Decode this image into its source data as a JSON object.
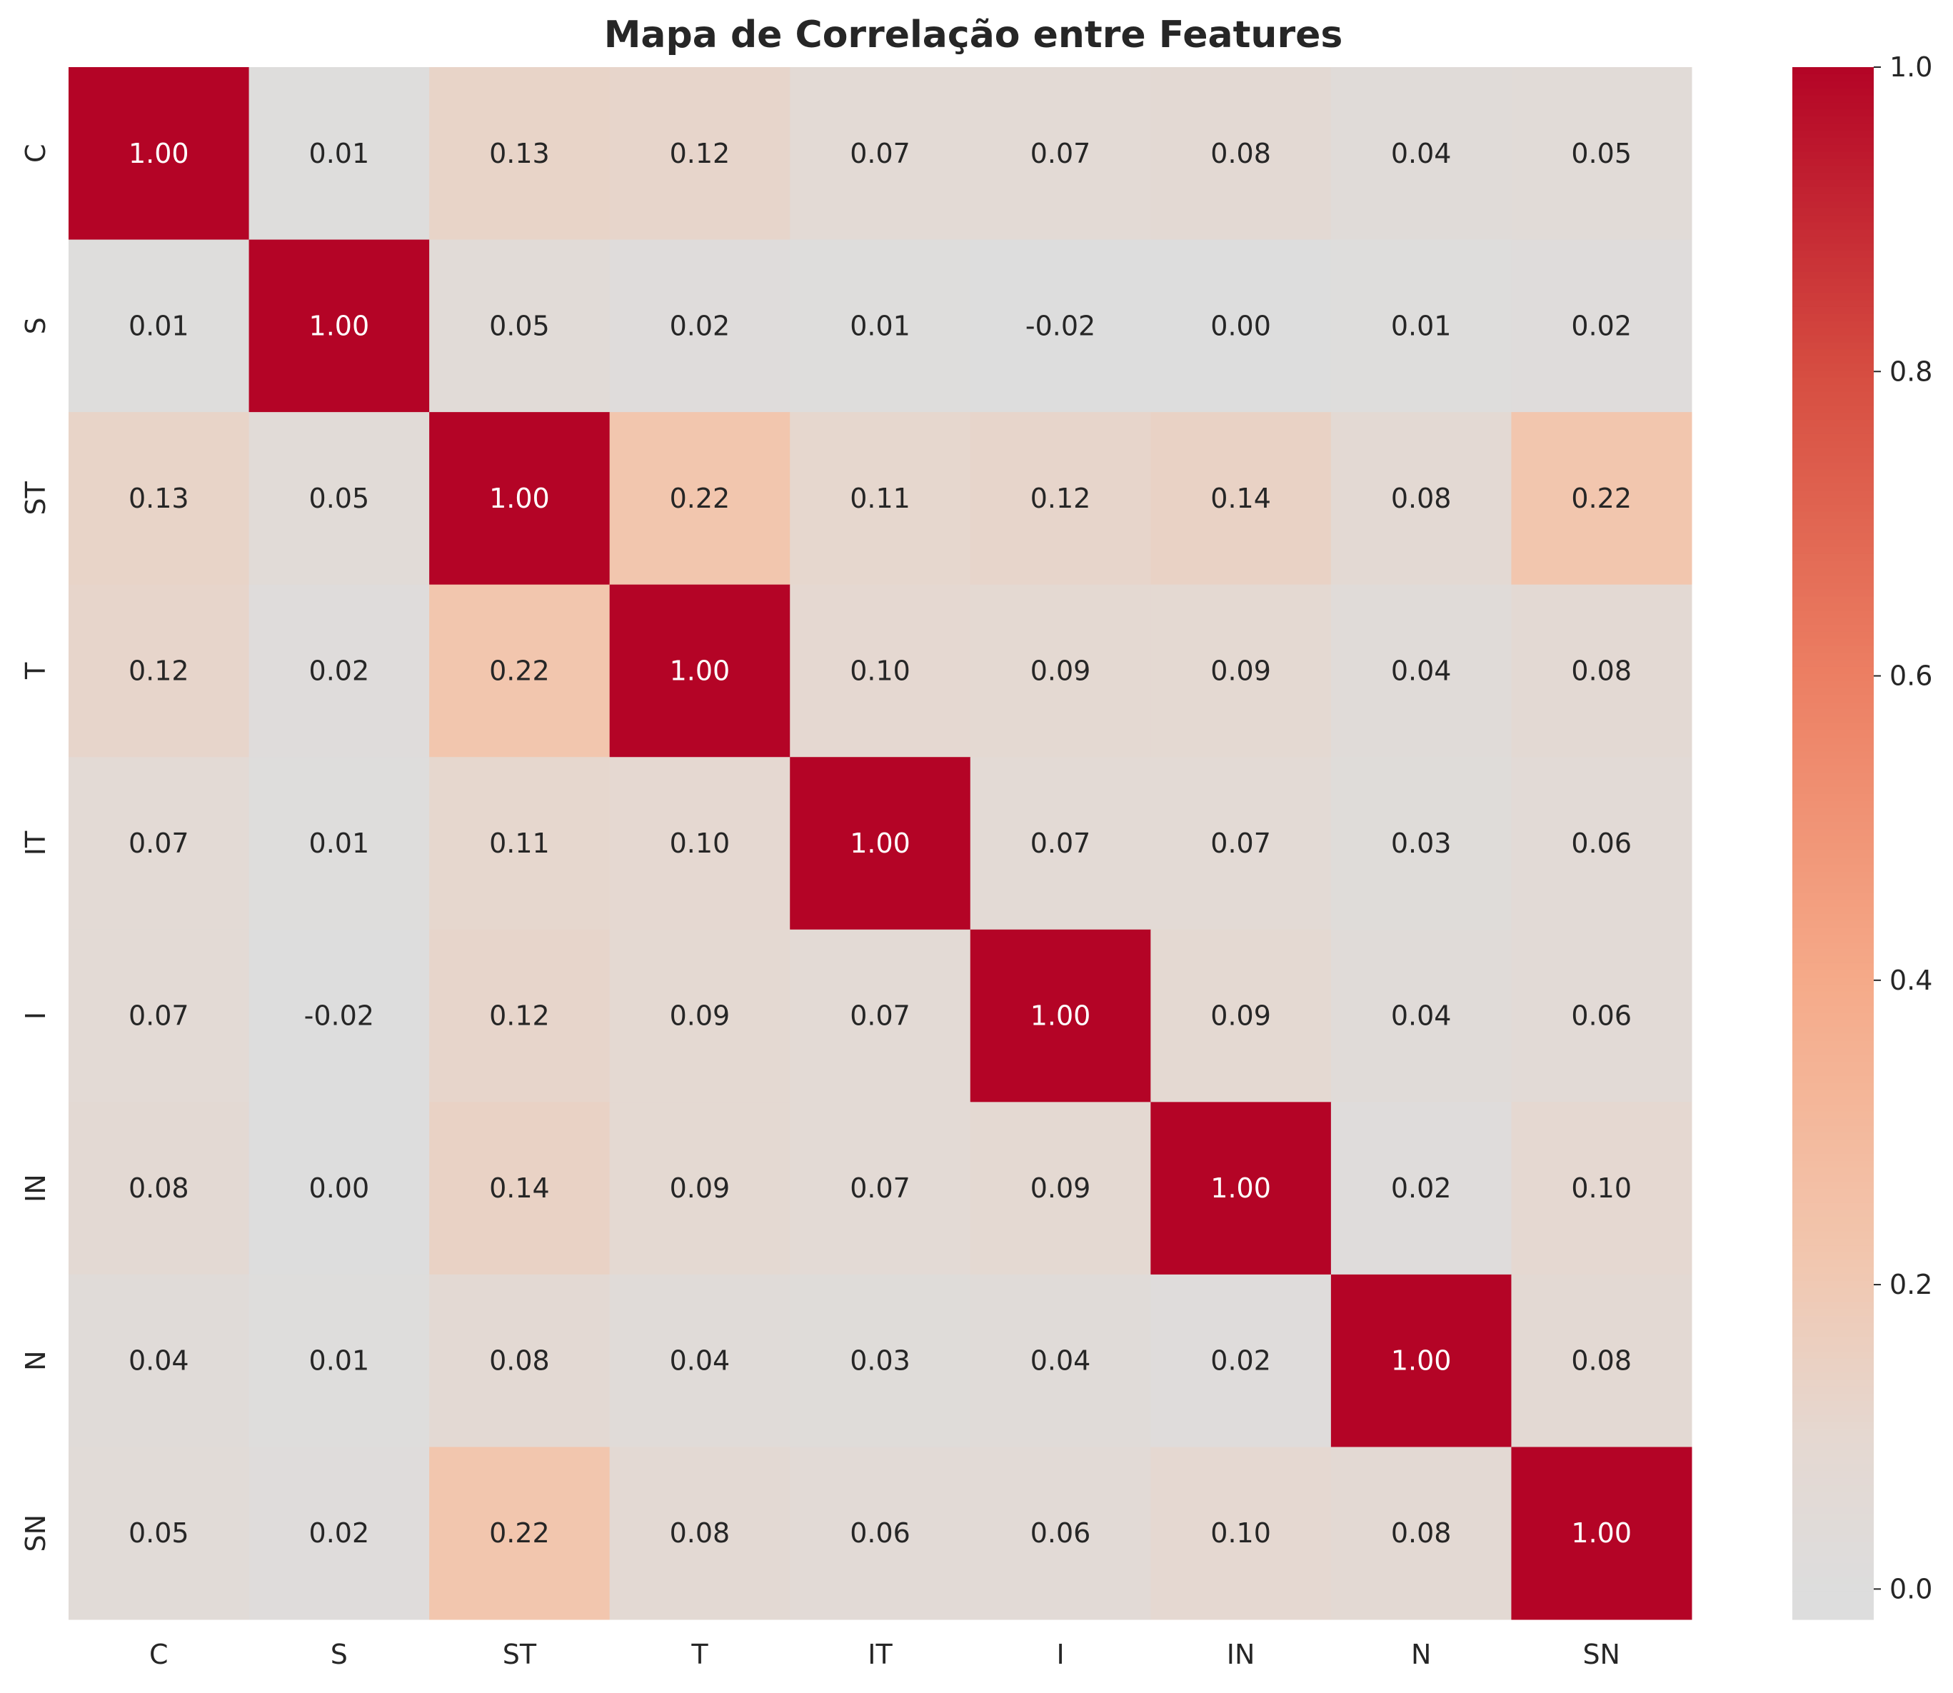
{
  "chart_data": {
    "type": "heatmap",
    "title": "Mapa de Correlação entre Features",
    "row_labels": [
      "C",
      "S",
      "ST",
      "T",
      "IT",
      "I",
      "IN",
      "N",
      "SN"
    ],
    "col_labels": [
      "C",
      "S",
      "ST",
      "T",
      "IT",
      "I",
      "IN",
      "N",
      "SN"
    ],
    "values": [
      [
        1.0,
        0.01,
        0.13,
        0.12,
        0.07,
        0.07,
        0.08,
        0.04,
        0.05
      ],
      [
        0.01,
        1.0,
        0.05,
        0.02,
        0.01,
        -0.02,
        -0.0,
        0.01,
        0.02
      ],
      [
        0.13,
        0.05,
        1.0,
        0.22,
        0.11,
        0.12,
        0.14,
        0.08,
        0.22
      ],
      [
        0.12,
        0.02,
        0.22,
        1.0,
        0.1,
        0.09,
        0.09,
        0.04,
        0.08
      ],
      [
        0.07,
        0.01,
        0.11,
        0.1,
        1.0,
        0.07,
        0.07,
        0.03,
        0.06
      ],
      [
        0.07,
        -0.02,
        0.12,
        0.09,
        0.07,
        1.0,
        0.09,
        0.04,
        0.06
      ],
      [
        0.08,
        -0.0,
        0.14,
        0.09,
        0.07,
        0.09,
        1.0,
        0.02,
        0.1
      ],
      [
        0.04,
        0.01,
        0.08,
        0.04,
        0.03,
        0.04,
        0.02,
        1.0,
        0.08
      ],
      [
        0.05,
        0.02,
        0.22,
        0.08,
        0.06,
        0.06,
        0.1,
        0.08,
        1.0
      ]
    ],
    "value_format": "0.00",
    "colorbar": {
      "range": [
        -0.02,
        1.0
      ],
      "ticks": [
        "0.0",
        "0.2",
        "0.4",
        "0.6",
        "0.8",
        "1.0"
      ],
      "tick_values": [
        0.0,
        0.2,
        0.4,
        0.6,
        0.8,
        1.0
      ],
      "colormap": "coolwarm (centered at 0)"
    },
    "colors": {
      "max": "#b40426",
      "neutral": "#dddddd",
      "min": "#dcdee3"
    },
    "grid": false
  }
}
